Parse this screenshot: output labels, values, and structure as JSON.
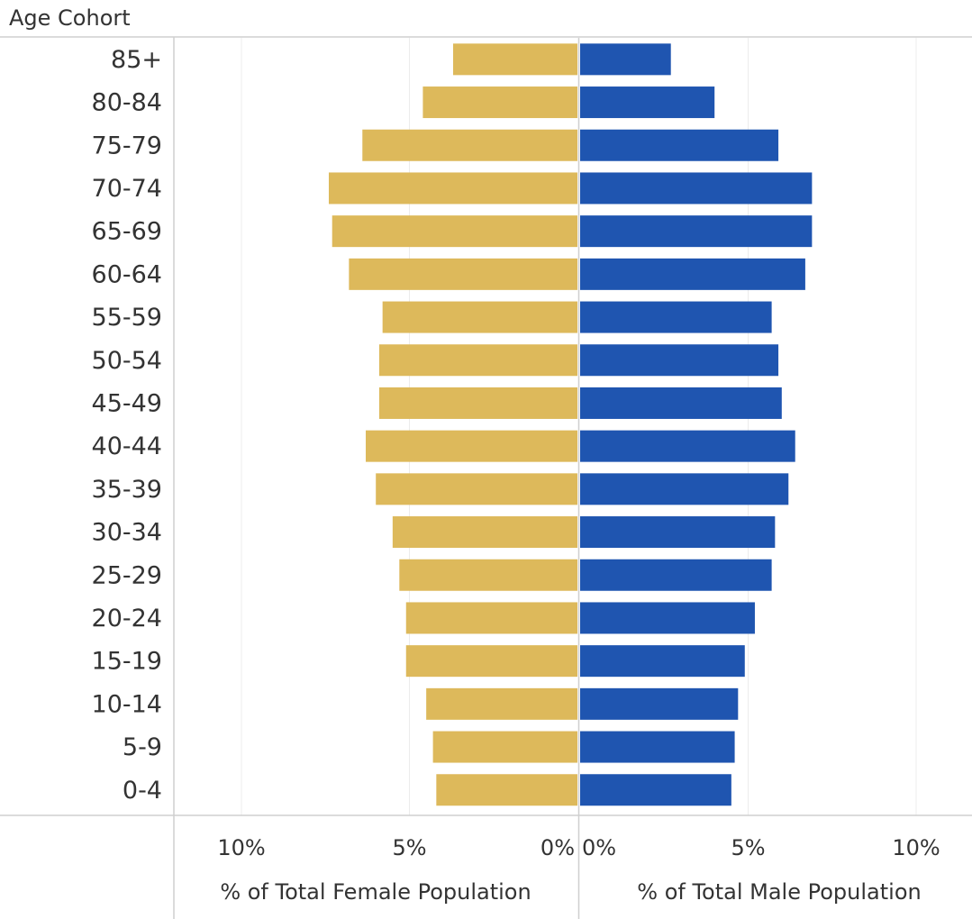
{
  "chart_data": {
    "type": "bar",
    "orientation": "horizontal",
    "layout": "population-pyramid",
    "row_header": "Age Cohort",
    "categories": [
      "85+",
      "80-84",
      "75-79",
      "70-74",
      "65-69",
      "60-64",
      "55-59",
      "50-54",
      "45-49",
      "40-44",
      "35-39",
      "30-34",
      "25-29",
      "20-24",
      "15-19",
      "10-14",
      "5-9",
      "0-4"
    ],
    "female": {
      "xlabel": "% of Total Female Population",
      "tick_labels": [
        "10%",
        "5%",
        "0%"
      ],
      "ticks": [
        10,
        5,
        0
      ],
      "values": [
        3.7,
        4.6,
        6.4,
        7.4,
        7.3,
        6.8,
        5.8,
        5.9,
        5.9,
        6.3,
        6.0,
        5.5,
        5.3,
        5.1,
        5.1,
        4.5,
        4.3,
        4.2
      ],
      "color": "#DDB95B"
    },
    "male": {
      "xlabel": "% of Total Male Population",
      "tick_labels": [
        "0%",
        "5%",
        "10%"
      ],
      "ticks": [
        0,
        5,
        10
      ],
      "values": [
        2.7,
        4.0,
        5.9,
        6.9,
        6.9,
        6.7,
        5.7,
        5.9,
        6.0,
        6.4,
        6.2,
        5.8,
        5.7,
        5.2,
        4.9,
        4.7,
        4.6,
        4.5
      ],
      "color": "#1F55B0"
    },
    "xlim": [
      0,
      12
    ],
    "grid": true
  }
}
